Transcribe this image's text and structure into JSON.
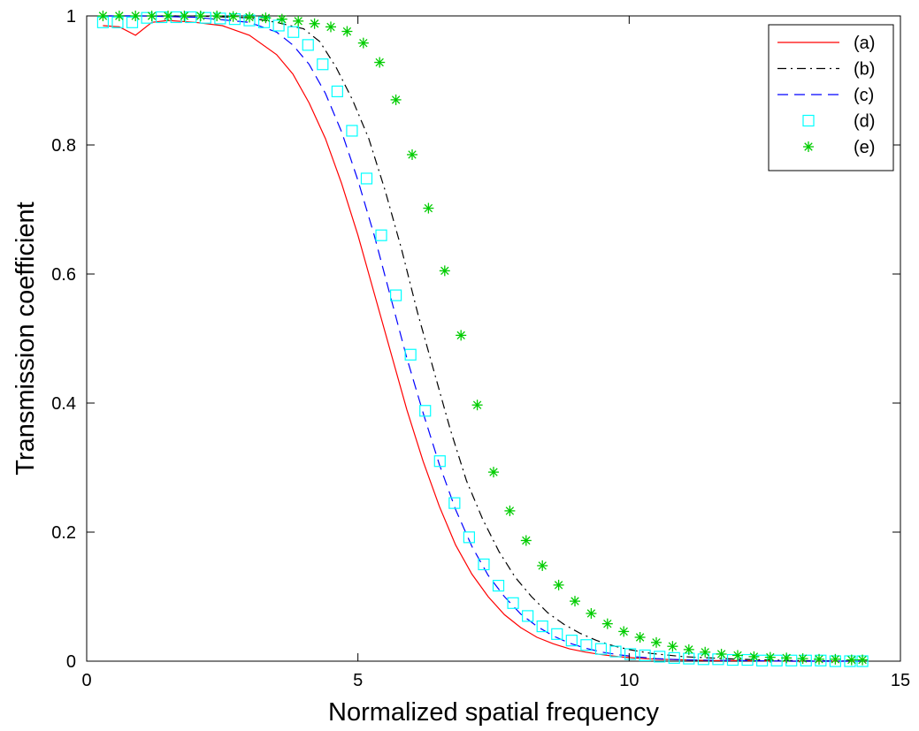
{
  "chart_data": {
    "type": "line",
    "title": "",
    "xlabel": "Normalized spatial frequency",
    "ylabel": "Transmission coefficient",
    "xlim": [
      0,
      15
    ],
    "ylim": [
      0,
      1
    ],
    "xticks": [
      "0",
      "5",
      "10",
      "15"
    ],
    "yticks": [
      "0",
      "0.2",
      "0.4",
      "0.6",
      "0.8",
      "1"
    ],
    "grid": false,
    "legend_position": "top-right",
    "series": [
      {
        "name": "(a)",
        "style": "solid-line",
        "color": "#ff0000",
        "x": [
          0.3,
          0.6,
          0.9,
          1.2,
          1.5,
          2.0,
          2.5,
          3.0,
          3.5,
          3.8,
          4.1,
          4.4,
          4.7,
          5.0,
          5.3,
          5.6,
          5.9,
          6.2,
          6.5,
          6.8,
          7.1,
          7.4,
          7.7,
          8.0,
          8.3,
          8.6,
          8.9,
          9.2,
          9.5,
          9.8,
          10.1,
          10.5,
          11.0,
          11.5,
          12.0,
          13.0,
          14.3
        ],
        "y": [
          0.985,
          0.983,
          0.97,
          0.99,
          0.993,
          0.99,
          0.985,
          0.97,
          0.94,
          0.91,
          0.865,
          0.81,
          0.74,
          0.66,
          0.57,
          0.48,
          0.39,
          0.31,
          0.24,
          0.18,
          0.135,
          0.1,
          0.072,
          0.052,
          0.037,
          0.027,
          0.019,
          0.014,
          0.01,
          0.007,
          0.005,
          0.003,
          0.002,
          0.001,
          0.001,
          0.0,
          0.0
        ]
      },
      {
        "name": "(b)",
        "style": "dash-dot-line",
        "color": "#000000",
        "x": [
          0.3,
          1.0,
          2.0,
          3.0,
          3.5,
          4.0,
          4.3,
          4.6,
          4.9,
          5.2,
          5.5,
          5.8,
          6.1,
          6.4,
          6.7,
          7.0,
          7.3,
          7.6,
          7.9,
          8.2,
          8.5,
          8.8,
          9.1,
          9.4,
          9.7,
          10.0,
          10.4,
          11.0,
          12.0,
          13.0,
          14.3
        ],
        "y": [
          1.0,
          1.0,
          1.0,
          0.997,
          0.99,
          0.98,
          0.96,
          0.92,
          0.87,
          0.81,
          0.73,
          0.64,
          0.54,
          0.45,
          0.36,
          0.28,
          0.22,
          0.17,
          0.13,
          0.1,
          0.075,
          0.057,
          0.043,
          0.032,
          0.024,
          0.018,
          0.012,
          0.007,
          0.003,
          0.001,
          0.0
        ]
      },
      {
        "name": "(c)",
        "style": "dashed-line",
        "color": "#0000ff",
        "x": [
          0.3,
          1.0,
          2.0,
          3.0,
          3.5,
          3.8,
          4.1,
          4.4,
          4.7,
          5.0,
          5.3,
          5.6,
          5.9,
          6.2,
          6.5,
          6.8,
          7.1,
          7.4,
          7.7,
          8.0,
          8.3,
          8.6,
          8.9,
          9.2,
          9.5,
          9.8,
          10.1,
          10.5,
          11.0,
          12.0,
          13.0,
          14.3
        ],
        "y": [
          1.0,
          1.0,
          0.998,
          0.99,
          0.975,
          0.955,
          0.925,
          0.88,
          0.82,
          0.745,
          0.66,
          0.565,
          0.47,
          0.385,
          0.305,
          0.235,
          0.178,
          0.133,
          0.1,
          0.073,
          0.054,
          0.039,
          0.028,
          0.02,
          0.014,
          0.01,
          0.007,
          0.004,
          0.002,
          0.001,
          0.0,
          0.0
        ]
      },
      {
        "name": "(d)",
        "style": "square-markers",
        "color": "#00ffff",
        "x": [
          0.3,
          0.57,
          0.84,
          1.11,
          1.38,
          1.65,
          1.92,
          2.19,
          2.46,
          2.73,
          3.0,
          3.27,
          3.54,
          3.81,
          4.08,
          4.35,
          4.62,
          4.89,
          5.16,
          5.43,
          5.7,
          5.97,
          6.24,
          6.51,
          6.78,
          7.05,
          7.32,
          7.59,
          7.86,
          8.13,
          8.4,
          8.67,
          8.94,
          9.21,
          9.48,
          9.75,
          10.02,
          10.29,
          10.56,
          10.83,
          11.1,
          11.37,
          11.64,
          11.91,
          12.18,
          12.45,
          12.72,
          12.99,
          13.26,
          13.53,
          13.8,
          14.07,
          14.3
        ],
        "y": [
          0.99,
          0.99,
          0.99,
          0.997,
          0.998,
          0.998,
          0.998,
          0.997,
          0.996,
          0.995,
          0.993,
          0.99,
          0.985,
          0.975,
          0.955,
          0.925,
          0.883,
          0.822,
          0.748,
          0.66,
          0.567,
          0.475,
          0.388,
          0.31,
          0.245,
          0.192,
          0.15,
          0.117,
          0.09,
          0.07,
          0.054,
          0.042,
          0.032,
          0.025,
          0.019,
          0.015,
          0.011,
          0.009,
          0.007,
          0.005,
          0.004,
          0.003,
          0.003,
          0.002,
          0.002,
          0.001,
          0.001,
          0.001,
          0.001,
          0.001,
          0.0,
          0.0,
          0.0
        ]
      },
      {
        "name": "(e)",
        "style": "star-markers",
        "color": "#00cc00",
        "x": [
          0.3,
          0.6,
          0.9,
          1.2,
          1.5,
          1.8,
          2.1,
          2.4,
          2.7,
          3.0,
          3.3,
          3.6,
          3.9,
          4.2,
          4.5,
          4.8,
          5.1,
          5.4,
          5.7,
          6.0,
          6.3,
          6.6,
          6.9,
          7.2,
          7.5,
          7.8,
          8.1,
          8.4,
          8.7,
          9.0,
          9.3,
          9.6,
          9.9,
          10.2,
          10.5,
          10.8,
          11.1,
          11.4,
          11.7,
          12.0,
          12.3,
          12.6,
          12.9,
          13.2,
          13.5,
          13.8,
          14.1,
          14.3
        ],
        "y": [
          1.0,
          1.0,
          1.0,
          1.0,
          1.0,
          1.0,
          1.0,
          1.0,
          0.999,
          0.998,
          0.997,
          0.995,
          0.992,
          0.988,
          0.983,
          0.976,
          0.958,
          0.928,
          0.87,
          0.785,
          0.702,
          0.605,
          0.505,
          0.397,
          0.293,
          0.233,
          0.187,
          0.148,
          0.118,
          0.093,
          0.074,
          0.058,
          0.046,
          0.037,
          0.029,
          0.023,
          0.018,
          0.014,
          0.011,
          0.009,
          0.007,
          0.006,
          0.005,
          0.004,
          0.003,
          0.003,
          0.002,
          0.002
        ]
      }
    ]
  }
}
